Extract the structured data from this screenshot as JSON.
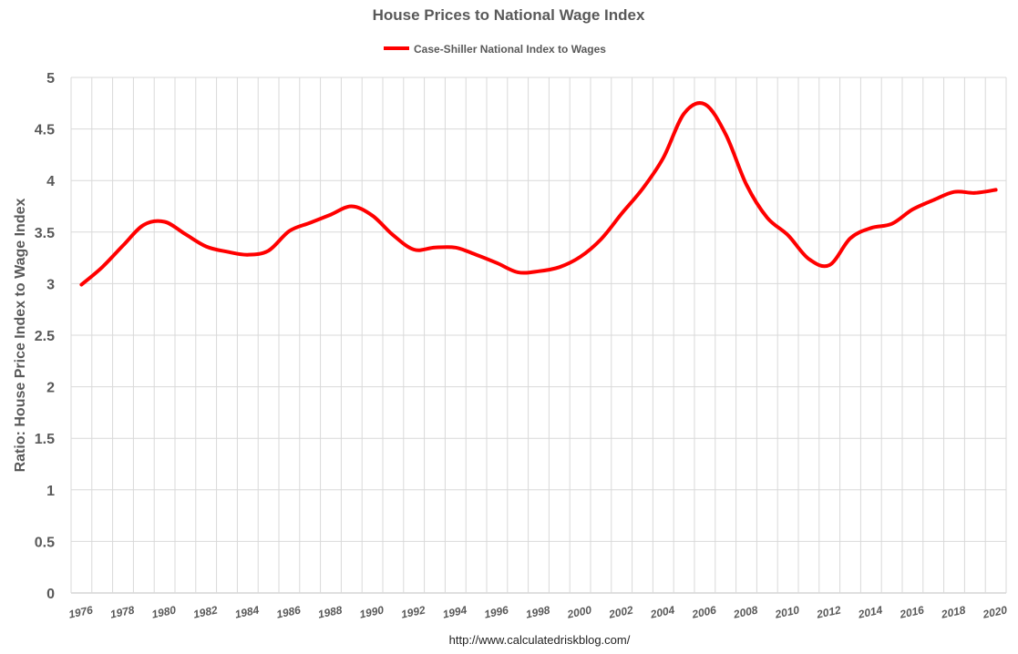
{
  "chart_data": {
    "type": "line",
    "title": "House Prices to National Wage Index",
    "xlabel": "",
    "ylabel": "Ratio: House Price Index to Wage Index",
    "source_note": "http://www.calculatedriskblog.com/",
    "xlim": [
      1976,
      2020.5
    ],
    "ylim": [
      0,
      5
    ],
    "y_ticks": [
      0,
      0.5,
      1,
      1.5,
      2,
      2.5,
      3,
      3.5,
      4,
      4.5,
      5
    ],
    "y_tick_labels": [
      "0",
      "0.5",
      "1",
      "1.5",
      "2",
      "2.5",
      "3",
      "3.5",
      "4",
      "4.5",
      "5"
    ],
    "x_tick_labels": [
      "1976",
      "1978",
      "1980",
      "1982",
      "1984",
      "1986",
      "1988",
      "1990",
      "1992",
      "1994",
      "1996",
      "1998",
      "2000",
      "2002",
      "2004",
      "2006",
      "2008",
      "2010",
      "2012",
      "2014",
      "2016",
      "2018",
      "2020"
    ],
    "grid": {
      "horizontal": true,
      "vertical": true
    },
    "legend_position": "top-center",
    "series": [
      {
        "name": "Case-Shiller National Index to Wages",
        "color": "#ff0000",
        "x": [
          1976,
          1977,
          1978,
          1979,
          1980,
          1981,
          1982,
          1983,
          1984,
          1985,
          1986,
          1987,
          1988,
          1989,
          1990,
          1991,
          1992,
          1993,
          1994,
          1995,
          1996,
          1997,
          1998,
          1999,
          2000,
          2001,
          2002,
          2003,
          2004,
          2005,
          2006,
          2007,
          2008,
          2009,
          2010,
          2011,
          2012,
          2013,
          2014,
          2015,
          2016,
          2017,
          2018,
          2019,
          2020
        ],
        "values": [
          2.99,
          3.16,
          3.37,
          3.57,
          3.6,
          3.48,
          3.36,
          3.31,
          3.28,
          3.32,
          3.51,
          3.59,
          3.67,
          3.75,
          3.66,
          3.47,
          3.33,
          3.35,
          3.35,
          3.28,
          3.2,
          3.11,
          3.12,
          3.16,
          3.26,
          3.43,
          3.68,
          3.92,
          4.22,
          4.65,
          4.74,
          4.45,
          3.96,
          3.64,
          3.47,
          3.24,
          3.18,
          3.44,
          3.54,
          3.58,
          3.72,
          3.81,
          3.89,
          3.88,
          3.91
        ]
      }
    ]
  }
}
